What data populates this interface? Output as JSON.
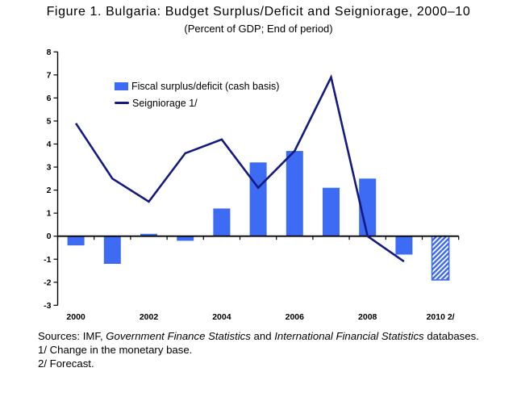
{
  "title": "Figure 1. Bulgaria: Budget Surplus/Deficit and Seigniorage, 2000–10",
  "subtitle": "(Percent of GDP; End of period)",
  "chart_data": {
    "type": "combo",
    "categories": [
      "2000",
      "2001",
      "2002",
      "2003",
      "2004",
      "2005",
      "2006",
      "2007",
      "2008",
      "2009",
      "2010"
    ],
    "x_axis_tick_labels": [
      "2000",
      "2002",
      "2004",
      "2006",
      "2008",
      "2010 2/"
    ],
    "series": [
      {
        "name": "Fiscal surplus/deficit (cash basis)",
        "type": "bar",
        "color": "#3E6BF3",
        "values": [
          -0.4,
          -1.2,
          0.1,
          -0.2,
          1.2,
          3.2,
          3.7,
          2.1,
          2.5,
          -0.8,
          -1.9
        ],
        "last_bar_hatched_forecast": true
      },
      {
        "name": "Seigniorage 1/",
        "type": "line",
        "color": "#151A80",
        "values": [
          4.9,
          2.5,
          1.5,
          3.6,
          4.2,
          2.1,
          3.7,
          6.9,
          0.0,
          -1.1,
          null
        ]
      }
    ],
    "ylim": [
      -3,
      8
    ],
    "ytick_step": 1,
    "grid": false,
    "legend_position": "top-left-inside",
    "axis_color": "#000000"
  },
  "footer": {
    "sources_prefix": "Sources: IMF, ",
    "source_italic_1": "Government Finance Statistics",
    "sources_mid": " and ",
    "source_italic_2": "International Financial Statistics",
    "sources_suffix": " databases.",
    "note_1": "1/ Change in the monetary base.",
    "note_2": "2/ Forecast."
  }
}
